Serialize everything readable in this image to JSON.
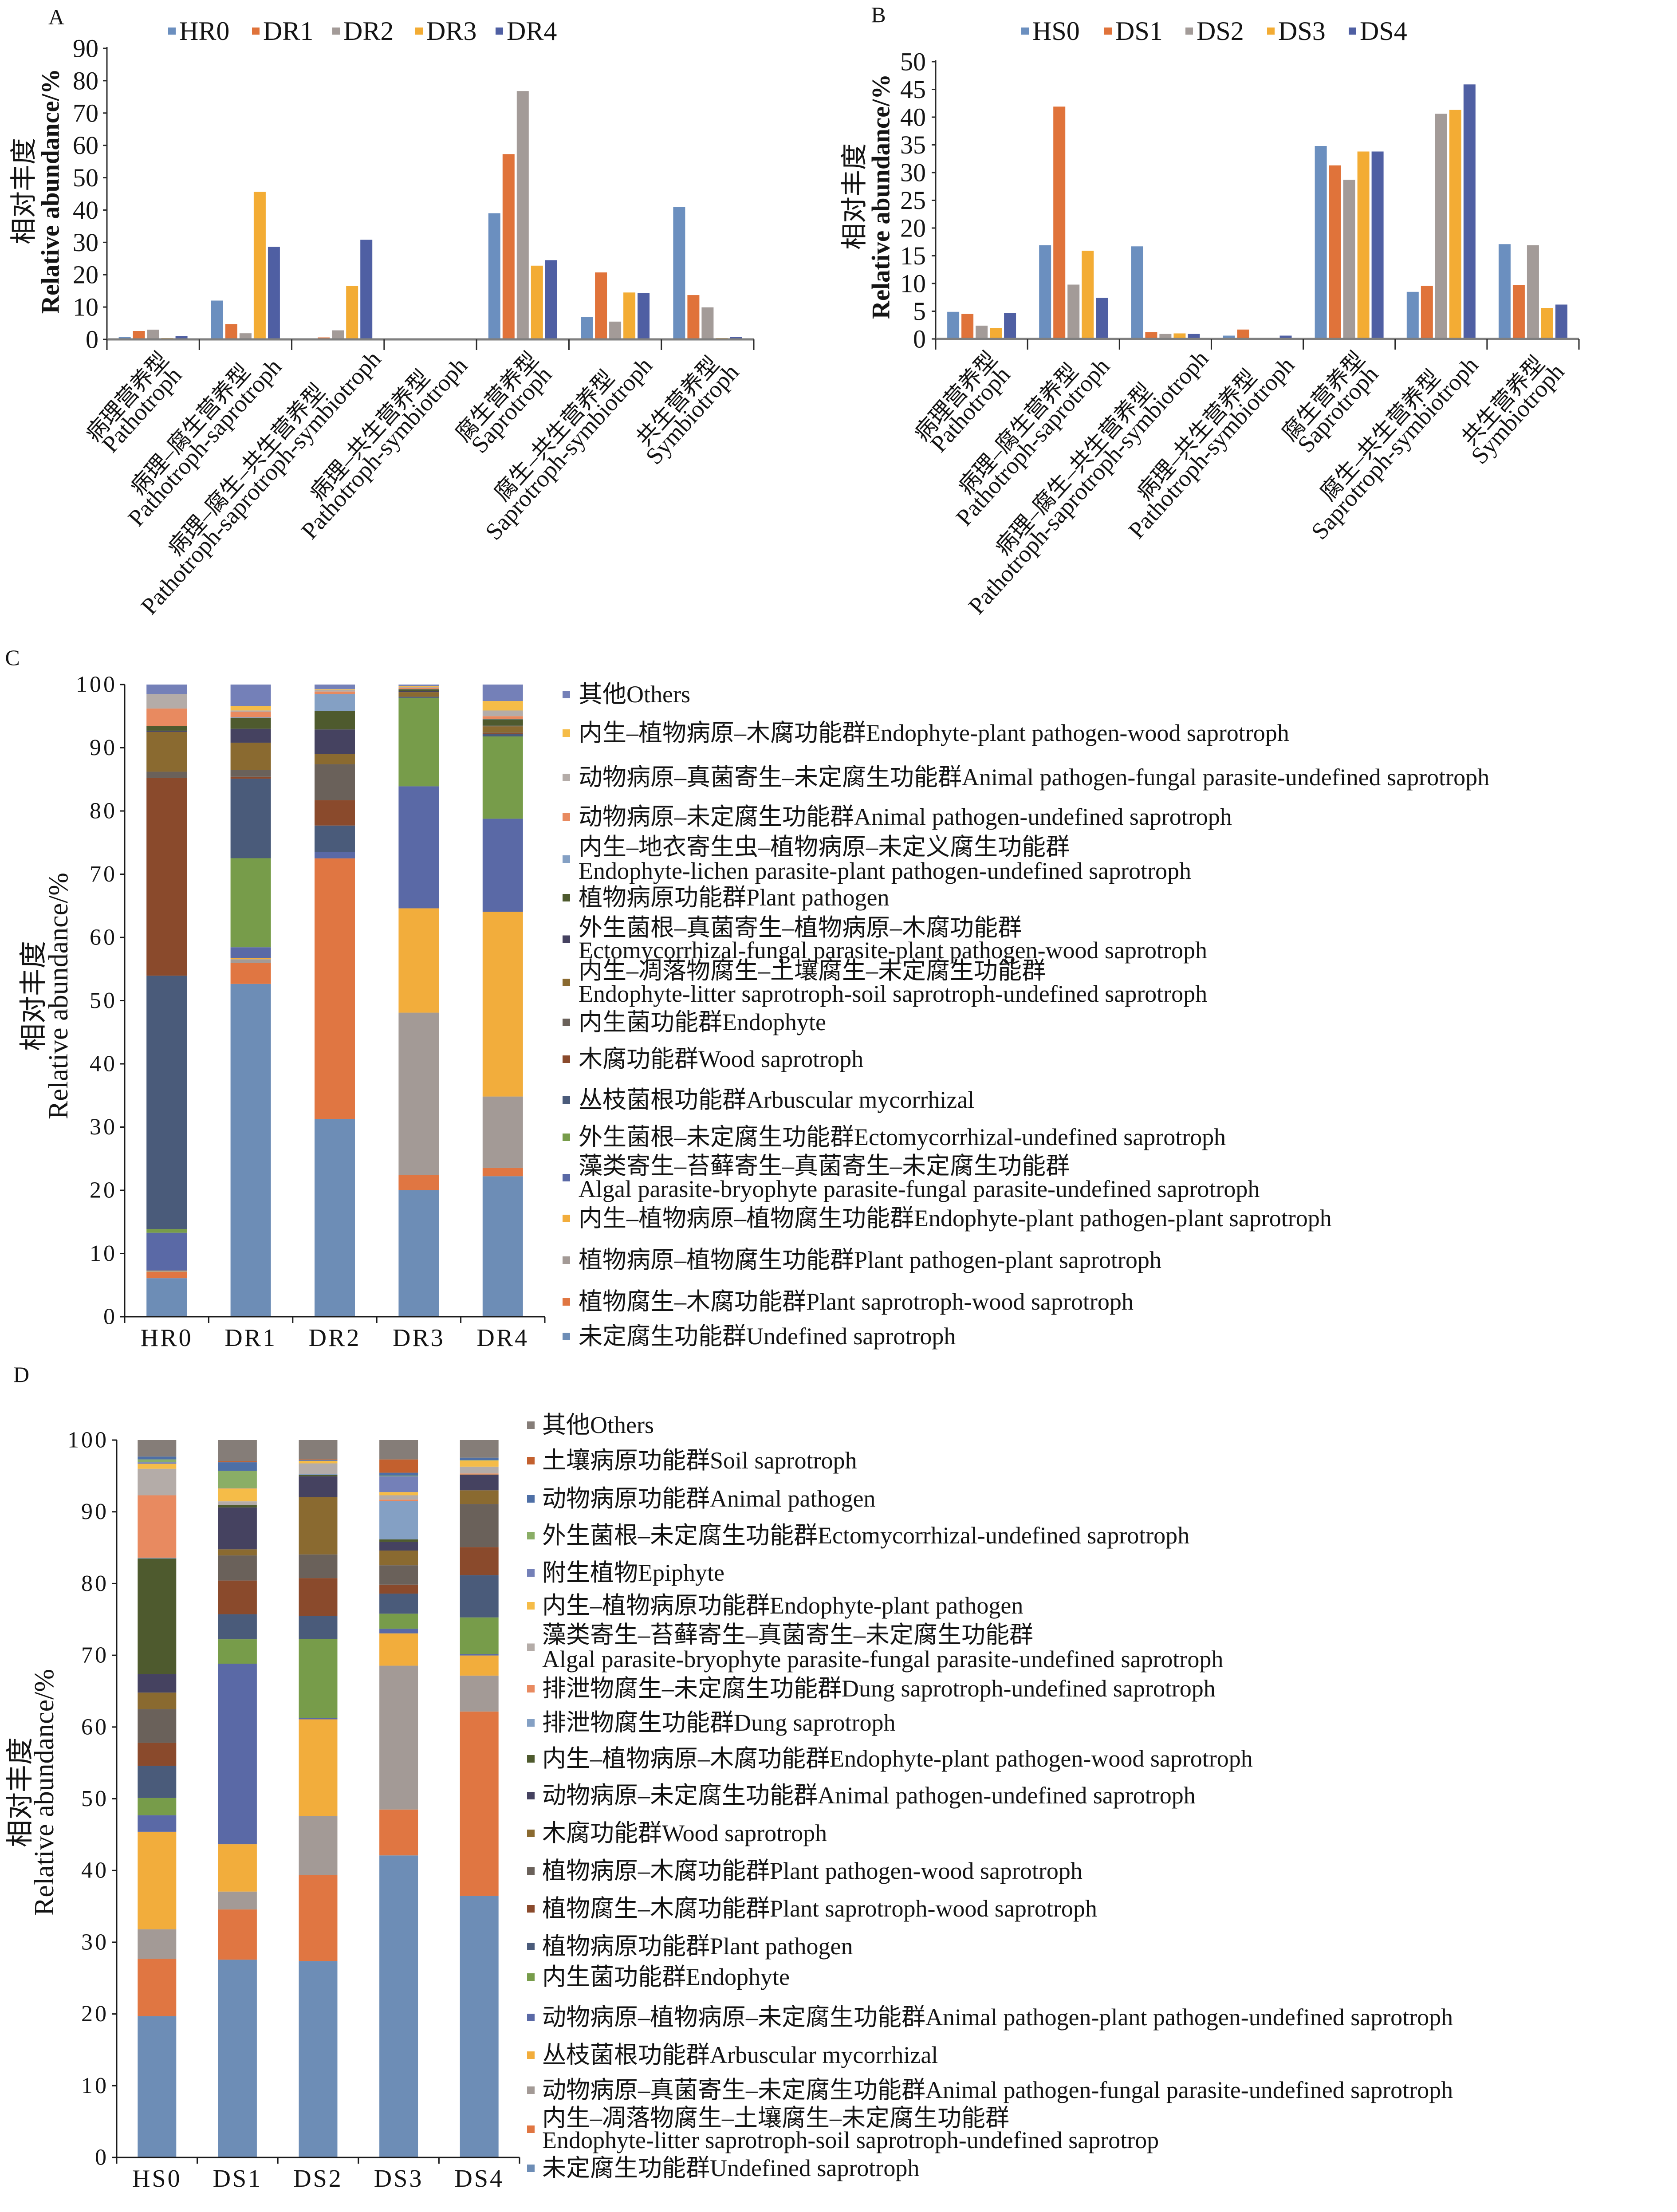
{
  "figure": {
    "description": "Fungal functional guild relative abundance, panels A-D"
  },
  "chart_data": [
    {
      "panel": "A",
      "type": "bar",
      "stacked": false,
      "title": "",
      "xlabel": "",
      "ylabel_cn": "相对丰度",
      "ylabel_en": "Relative abundance/%",
      "ylim": [
        0,
        90
      ],
      "yticks": [
        0,
        10,
        20,
        30,
        40,
        50,
        60,
        70,
        80,
        90
      ],
      "grid": false,
      "legend_position": "top",
      "categories": [
        {
          "cn": "病理营养型",
          "en": "Pathotroph"
        },
        {
          "cn": "病理–腐生营养型",
          "en": "Pathotroph-saprotroph"
        },
        {
          "cn": "病理–腐生–共生营养型",
          "en": "Pathotroph-saprotroph-symbiotroph"
        },
        {
          "cn": "病理–共生营养型",
          "en": "Pathotroph-symbiotroph"
        },
        {
          "cn": "腐生营养型",
          "en": "Saprotroph"
        },
        {
          "cn": "腐生–共生营养型",
          "en": "Saprotroph-symbiotroph"
        },
        {
          "cn": "共生营养型",
          "en": "Symbiotroph"
        }
      ],
      "series": [
        {
          "name": "HR0",
          "color": "#6b8fbf",
          "values": [
            0.7,
            12.0,
            0.3,
            0.0,
            39.0,
            6.9,
            41.0
          ]
        },
        {
          "name": "DR1",
          "color": "#e0733a",
          "values": [
            2.6,
            4.7,
            0.6,
            0.0,
            57.3,
            20.7,
            13.7
          ]
        },
        {
          "name": "DR2",
          "color": "#a39b98",
          "values": [
            3.0,
            1.9,
            2.8,
            0.0,
            76.8,
            5.5,
            9.9
          ]
        },
        {
          "name": "DR3",
          "color": "#f3ac34",
          "values": [
            0.4,
            45.6,
            16.5,
            0.0,
            22.8,
            14.5,
            0.4
          ]
        },
        {
          "name": "DR4",
          "color": "#4f5fa3",
          "values": [
            1.0,
            28.6,
            30.8,
            0.0,
            24.5,
            14.3,
            0.7
          ]
        }
      ]
    },
    {
      "panel": "B",
      "type": "bar",
      "stacked": false,
      "title": "",
      "xlabel": "",
      "ylabel_cn": "相对丰度",
      "ylabel_en": "Relative abundance/%",
      "ylim": [
        0,
        50
      ],
      "yticks": [
        0,
        5,
        10,
        15,
        20,
        25,
        30,
        35,
        40,
        45,
        50
      ],
      "grid": false,
      "legend_position": "top",
      "categories": [
        {
          "cn": "病理营养型",
          "en": "Pathotroph"
        },
        {
          "cn": "病理–腐生营养型",
          "en": "Pathotroph-saprotroph"
        },
        {
          "cn": "病理–腐生–共生营养型",
          "en": "Pathotroph-saprotroph-symbiotroph"
        },
        {
          "cn": "病理–共生营养型",
          "en": "Pathotroph-symbiotroph"
        },
        {
          "cn": "腐生营养型",
          "en": "Saprotroph"
        },
        {
          "cn": "腐生–共生营养型",
          "en": "Saprotroph-symbiotroph"
        },
        {
          "cn": "共生营养型",
          "en": "Symbiotroph"
        }
      ],
      "series": [
        {
          "name": "HS0",
          "color": "#6b8fbf",
          "values": [
            4.9,
            16.9,
            16.7,
            0.6,
            34.8,
            8.5,
            17.1
          ]
        },
        {
          "name": "DS1",
          "color": "#e0733a",
          "values": [
            4.5,
            41.9,
            1.2,
            1.7,
            31.3,
            9.6,
            9.7
          ]
        },
        {
          "name": "DS2",
          "color": "#a39b98",
          "values": [
            2.4,
            9.8,
            0.9,
            0.1,
            28.7,
            40.6,
            16.9
          ]
        },
        {
          "name": "DS3",
          "color": "#f3ac34",
          "values": [
            2.0,
            15.9,
            1.0,
            0.1,
            33.8,
            41.3,
            5.6
          ]
        },
        {
          "name": "DS4",
          "color": "#4f5fa3",
          "values": [
            4.7,
            7.4,
            0.9,
            0.6,
            33.8,
            45.9,
            6.2
          ]
        }
      ]
    },
    {
      "panel": "C",
      "type": "bar",
      "stacked": true,
      "title": "",
      "xlabel": "",
      "ylabel_cn": "相对丰度",
      "ylabel_en": "Relative abundance/%",
      "ylim": [
        0,
        100
      ],
      "yticks": [
        0,
        10,
        20,
        30,
        40,
        50,
        60,
        70,
        80,
        90,
        100
      ],
      "grid": false,
      "legend_position": "right",
      "legend_order": "reverse of stack (top segment listed first)",
      "categories": [
        "HR0",
        "DR1",
        "DR2",
        "DR3",
        "DR4"
      ],
      "series": [
        {
          "cn": "未定腐生功能群",
          "en": "Undefined saprotroph",
          "color": "#6d8db6",
          "values": [
            6.1,
            52.7,
            31.3,
            20.0,
            22.2
          ]
        },
        {
          "cn": "植物腐生–木腐功能群",
          "en": "Plant saprotroph-wood saprotroph",
          "color": "#e07642",
          "values": [
            1.0,
            3.3,
            41.2,
            2.4,
            1.3
          ]
        },
        {
          "cn": "植物病原–植物腐生功能群",
          "en": "Plant pathogen-plant saprotroph",
          "color": "#a39a96",
          "values": [
            0.1,
            0.6,
            0.0,
            25.7,
            11.3
          ]
        },
        {
          "cn": "内生–植物病原–植物腐生功能群",
          "en": "Endophyte-plant pathogen-plant saprotroph",
          "color": "#f2ad3c",
          "values": [
            0.1,
            0.2,
            0.0,
            16.5,
            29.2
          ]
        },
        {
          "cn": "藻类寄生–苔藓寄生–真菌寄生–未定腐生功能群",
          "en": "Algal parasite-bryophyte parasite-fungal parasite-undefined saprotroph",
          "color": "#5a69a6",
          "values": [
            6.0,
            1.7,
            1.0,
            19.3,
            14.7
          ]
        },
        {
          "cn": "外生菌根–未定腐生功能群",
          "en": "Ectomycorrhizal-undefined saprotroph",
          "color": "#779c4a",
          "values": [
            0.6,
            14.1,
            0.0,
            14.0,
            13.0
          ]
        },
        {
          "cn": "丛枝菌根功能群",
          "en": "Arbuscular mycorrhizal",
          "color": "#4a5b7a",
          "values": [
            40.1,
            12.6,
            4.2,
            0.1,
            0.4
          ]
        },
        {
          "cn": "木腐功能群",
          "en": "Wood saprotroph",
          "color": "#8a4a2c",
          "values": [
            31.3,
            0.3,
            4.0,
            0.0,
            0.1
          ]
        },
        {
          "cn": "内生菌功能群",
          "en": "Endophyte",
          "color": "#6a615a",
          "values": [
            1.0,
            1.1,
            5.7,
            0.1,
            0.1
          ]
        },
        {
          "cn": "内生–凋落物腐生–土壤腐生–未定腐生功能群",
          "en": "Endophyte-litter saprotroph-soil saprotroph-undefined saprotroph",
          "color": "#8a6a30",
          "values": [
            6.3,
            4.3,
            1.6,
            0.7,
            1.0
          ]
        },
        {
          "cn": "外生菌根–真菌寄生–植物病原–木腐功能群",
          "en": "Ectomycorrhizal-fungal parasite-plant pathogen-wood saprotroph",
          "color": "#454260",
          "values": [
            0.2,
            2.2,
            3.9,
            0.15,
            0.1
          ]
        },
        {
          "cn": "植物病原功能群",
          "en": "Plant pathogen",
          "color": "#4e5a2e",
          "values": [
            0.7,
            1.7,
            2.9,
            0.3,
            1.0
          ]
        },
        {
          "cn": "内生–地衣寄生虫–植物病原–未定义腐生功能群",
          "en": "Endophyte-lichen parasite-plant pathogen-undefined saprotroph",
          "color": "#84a0c4",
          "values": [
            0.0,
            0.1,
            2.7,
            0.05,
            0.05
          ]
        },
        {
          "cn": "动物病原–未定腐生功能群",
          "en": "Animal pathogen-undefined saprotroph",
          "color": "#e88a60",
          "values": [
            2.8,
            0.9,
            0.4,
            0.2,
            0.45
          ]
        },
        {
          "cn": "动物病原–真菌寄生–未定腐生功能群",
          "en": "Animal pathogen-fungal parasite-undefined saprotroph",
          "color": "#b4aca8",
          "values": [
            2.3,
            0.2,
            0.3,
            0.1,
            0.9
          ]
        },
        {
          "cn": "内生–植物病原–木腐功能群",
          "en": "Endophyte-plant pathogen-wood saprotroph",
          "color": "#f5bc48",
          "values": [
            0.0,
            0.7,
            0.1,
            0.15,
            1.5
          ]
        },
        {
          "cn": "其他",
          "en": "Others",
          "color": "#7480b8",
          "values": [
            1.5,
            3.4,
            0.7,
            0.25,
            2.6
          ]
        }
      ]
    },
    {
      "panel": "D",
      "type": "bar",
      "stacked": true,
      "title": "",
      "xlabel": "",
      "ylabel_cn": "相对丰度",
      "ylabel_en": "Relative abundance/%",
      "ylim": [
        0,
        100
      ],
      "yticks": [
        0,
        10,
        20,
        30,
        40,
        50,
        60,
        70,
        80,
        90,
        100
      ],
      "grid": false,
      "legend_position": "right",
      "legend_order": "reverse of stack (top segment listed first)",
      "categories": [
        "HS0",
        "DS1",
        "DS2",
        "DS3",
        "DS4"
      ],
      "series": [
        {
          "cn": "未定腐生功能群",
          "en": "Undefined saprotroph",
          "color": "#6d8db6",
          "values": [
            19.7,
            27.6,
            27.4,
            42.1,
            36.4
          ]
        },
        {
          "cn": "内生–凋落物腐生–土壤腐生–未定腐生功能群",
          "en": "Endophyte-litter saprotroph-soil saprotroph-undefined saprotrop",
          "color": "#e07642",
          "values": [
            8.0,
            7.0,
            12.0,
            6.4,
            25.7
          ]
        },
        {
          "cn": "动物病原–真菌寄生–未定腐生功能群",
          "en": "Animal pathogen-fungal parasite-undefined saprotroph",
          "color": "#a39a96",
          "values": [
            4.1,
            2.5,
            8.2,
            20.05,
            5.0
          ]
        },
        {
          "cn": "丛枝菌根功能群",
          "en": "Arbuscular mycorrhizal",
          "color": "#f2ad3c",
          "values": [
            13.6,
            6.6,
            13.5,
            4.5,
            2.8
          ]
        },
        {
          "cn": "动物病原–植物病原–未定腐生功能群",
          "en": "Animal pathogen-plant pathogen-undefined saprotroph",
          "color": "#5a69a6",
          "values": [
            2.3,
            25.2,
            0.2,
            0.65,
            0.2
          ]
        },
        {
          "cn": "内生菌功能群",
          "en": "Endophyte",
          "color": "#779c4a",
          "values": [
            2.4,
            3.4,
            11.0,
            2.1,
            5.1
          ]
        },
        {
          "cn": "植物病原功能群",
          "en": "Plant pathogen",
          "color": "#4a5b7a",
          "values": [
            4.5,
            3.5,
            3.2,
            2.8,
            5.9
          ]
        },
        {
          "cn": "植物腐生–木腐功能群",
          "en": "Plant saprotroph-wood saprotroph",
          "color": "#8a4a2c",
          "values": [
            3.2,
            4.7,
            5.3,
            1.25,
            3.9
          ]
        },
        {
          "cn": "植物病原–木腐功能群",
          "en": "Plant pathogen-wood saprotroph",
          "color": "#6a615a",
          "values": [
            4.7,
            3.5,
            3.3,
            2.7,
            6.0
          ]
        },
        {
          "cn": "木腐功能群",
          "en": "Wood saprotroph",
          "color": "#8a6a30",
          "values": [
            2.3,
            0.85,
            8.0,
            2.05,
            1.9
          ]
        },
        {
          "cn": "动物病原–未定腐生功能群",
          "en": "Animal pathogen-undefined saprotroph",
          "color": "#454260",
          "values": [
            2.6,
            5.85,
            2.9,
            1.2,
            2.15
          ]
        },
        {
          "cn": "内生–植物病原–木腐功能群",
          "en": "Endophyte-plant pathogen-wood saprotroph",
          "color": "#4e5a2e",
          "values": [
            16.1,
            0.3,
            0.2,
            0.35,
            0.05
          ]
        },
        {
          "cn": "排泄物腐生功能群",
          "en": "Dung saprotroph",
          "color": "#84a0c4",
          "values": [
            0.1,
            0.0,
            0.1,
            5.35,
            0.0
          ]
        },
        {
          "cn": "排泄物腐生–未定腐生功能群",
          "en": "Dung saprotroph-undefined saprotroph",
          "color": "#e88a60",
          "values": [
            8.7,
            0.05,
            0.0,
            0.2,
            0.15
          ]
        },
        {
          "cn": "藻类寄生–苔藓寄生–真菌寄生–未定腐生功能群",
          "en": "Algal parasite-bryophyte parasite-fungal parasite-undefined saprotroph",
          "color": "#b4aca8",
          "values": [
            3.7,
            0.5,
            1.5,
            0.6,
            0.95
          ]
        },
        {
          "cn": "内生–植物病原功能群",
          "en": "Endophyte-plant pathogen",
          "color": "#f5bc48",
          "values": [
            0.7,
            1.8,
            0.35,
            0.45,
            0.85
          ]
        },
        {
          "cn": "附生植物",
          "en": "Epiphyte",
          "color": "#7480b8",
          "values": [
            0.2,
            0.05,
            0.0,
            2.2,
            0.0
          ]
        },
        {
          "cn": "外生菌根–未定腐生功能群",
          "en": "Ectomycorrhizal-undefined saprotroph",
          "color": "#8aae66",
          "values": [
            0.4,
            2.4,
            0.0,
            0.1,
            0.05
          ]
        },
        {
          "cn": "动物病原功能群",
          "en": "Animal pathogen",
          "color": "#4e6fa6",
          "values": [
            0.4,
            1.2,
            0.1,
            0.4,
            0.35
          ]
        },
        {
          "cn": "土壤病原功能群",
          "en": "Soil saprotroph",
          "color": "#c3602e",
          "values": [
            0.0,
            0.15,
            0.1,
            1.85,
            0.0
          ]
        },
        {
          "cn": "其他",
          "en": "Others",
          "color": "#857d78",
          "values": [
            2.3,
            2.95,
            2.7,
            2.7,
            2.45
          ]
        }
      ]
    }
  ]
}
